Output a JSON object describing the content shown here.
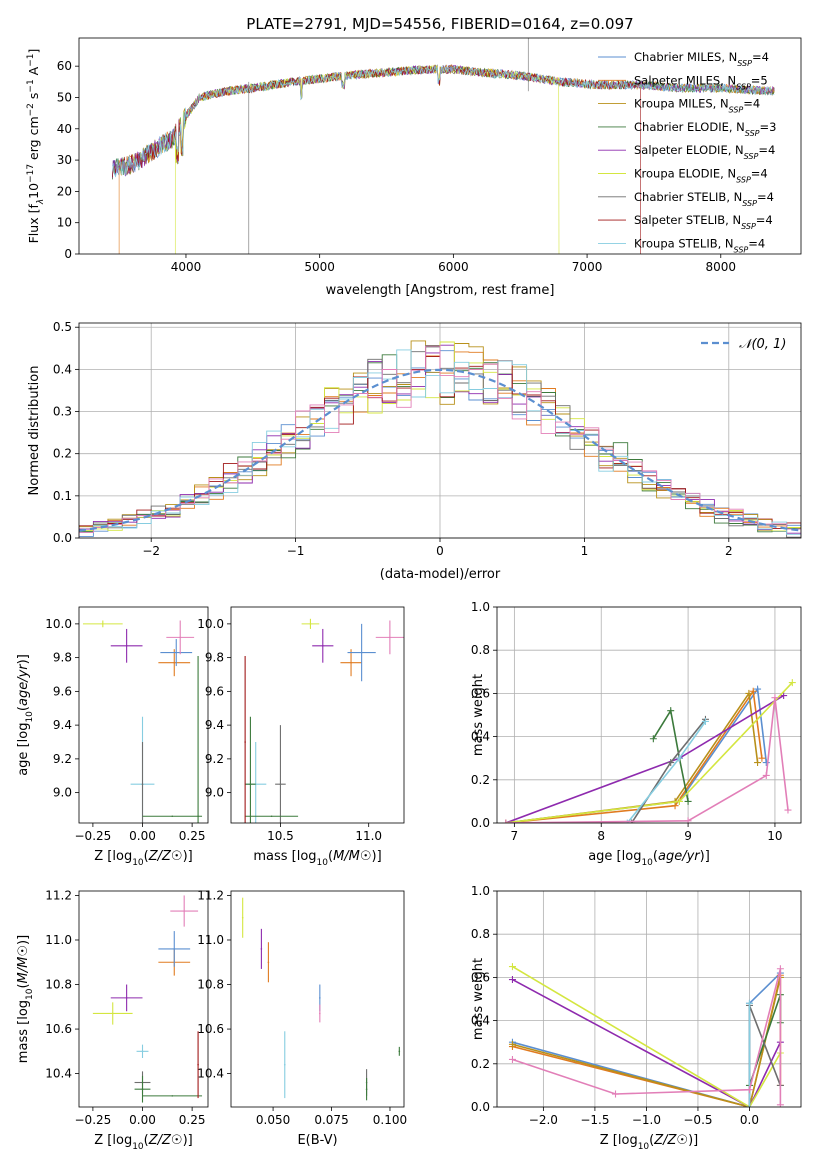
{
  "figure_title": "PLATE=2791, MJD=54556, FIBERID=0164, z=0.097",
  "colors": {
    "Chabrier MILES": "#5b8fd0",
    "Salpeter MILES": "#e07b20",
    "Kroupa MILES": "#b8901a",
    "Chabrier ELODIE": "#3c7a3c",
    "Salpeter ELODIE": "#8e2aae",
    "Kroupa ELODIE": "#d4e640",
    "Chabrier STELIB": "#6e6e6e",
    "Salpeter STELIB": "#a01818",
    "Kroupa STELIB": "#86cde0",
    "extra": "#e27fb8"
  },
  "chart_data": [
    {
      "type": "line",
      "title": "PLATE=2791, MJD=54556, FIBERID=0164, z=0.097",
      "xlabel": "wavelength [Angstrom, rest frame]",
      "ylabel_parts": [
        "Flux [f",
        "λ",
        "10",
        "−17",
        " erg cm",
        "−2",
        " s",
        "−1",
        " A",
        "−1",
        "]"
      ],
      "xlim": [
        3200,
        8600
      ],
      "ylim": [
        0,
        69
      ],
      "xticks": [
        4000,
        5000,
        6000,
        7000,
        8000
      ],
      "yticks": [
        0,
        10,
        20,
        30,
        40,
        50,
        60
      ],
      "grid": false,
      "legend_position": "upper-right",
      "legend": [
        {
          "label": "Chabrier MILES, N",
          "sub": "SSP",
          "suffix": "=4"
        },
        {
          "label": "Salpeter MILES, N",
          "sub": "SSP",
          "suffix": "=5"
        },
        {
          "label": "Kroupa MILES, N",
          "sub": "SSP",
          "suffix": "=4"
        },
        {
          "label": "Chabrier ELODIE, N",
          "sub": "SSP",
          "suffix": "=3"
        },
        {
          "label": "Salpeter ELODIE, N",
          "sub": "SSP",
          "suffix": "=4"
        },
        {
          "label": "Kroupa ELODIE, N",
          "sub": "SSP",
          "suffix": "=4"
        },
        {
          "label": "Chabrier STELIB, N",
          "sub": "SSP",
          "suffix": "=4"
        },
        {
          "label": "Salpeter STELIB, N",
          "sub": "SSP",
          "suffix": "=4"
        },
        {
          "label": "Kroupa STELIB, N",
          "sub": "SSP",
          "suffix": "=4"
        }
      ],
      "spectrum_anchors": [
        [
          3450,
          27
        ],
        [
          3550,
          28
        ],
        [
          3650,
          30
        ],
        [
          3750,
          33
        ],
        [
          3900,
          37
        ],
        [
          4000,
          44
        ],
        [
          4100,
          50
        ],
        [
          4300,
          52
        ],
        [
          4500,
          53
        ],
        [
          4800,
          55
        ],
        [
          5000,
          56
        ],
        [
          5200,
          57
        ],
        [
          5500,
          58
        ],
        [
          5800,
          59
        ],
        [
          6000,
          59
        ],
        [
          6200,
          58
        ],
        [
          6500,
          57
        ],
        [
          6800,
          55
        ],
        [
          7100,
          54
        ],
        [
          7400,
          54
        ],
        [
          7700,
          53
        ],
        [
          8000,
          53
        ],
        [
          8400,
          52
        ]
      ],
      "series_ranges": [
        [
          3450,
          8400
        ],
        [
          3500,
          8400
        ],
        [
          3480,
          8400
        ],
        [
          3450,
          8400
        ],
        [
          3450,
          8400
        ],
        [
          3920,
          6790
        ],
        [
          3450,
          8400
        ],
        [
          3450,
          7400
        ],
        [
          3450,
          8400
        ]
      ]
    },
    {
      "type": "line",
      "xlabel": "(data-model)/error",
      "ylabel": "Normed distribution",
      "xlim": [
        -2.5,
        2.5
      ],
      "ylim": [
        0,
        0.51
      ],
      "xticks": [
        -2,
        -1,
        0,
        1,
        2
      ],
      "xtick_labels": [
        "−2",
        "−1",
        "0",
        "1",
        "2"
      ],
      "yticks": [
        0.0,
        0.1,
        0.2,
        0.3,
        0.4,
        0.5
      ],
      "ytick_labels": [
        "0.0",
        "0.1",
        "0.2",
        "0.3",
        "0.4",
        "0.5"
      ],
      "grid": true,
      "legend_position": "upper-right",
      "legend_label": "𝒩(0, 1)",
      "curve": "normal(0,1)",
      "bin_width": 0.1,
      "bin_range": [
        -2.5,
        2.5
      ]
    },
    {
      "type": "scatter",
      "xlabel": "Z [log10(Z/Z☉)]",
      "ylabel": "age  [log10(age/yr)]",
      "xlim": [
        -0.32,
        0.33
      ],
      "ylim": [
        8.82,
        10.1
      ],
      "xticks": [
        -0.25,
        0.0,
        0.25
      ],
      "xtick_labels": [
        "−0.25",
        "0.00",
        "0.25"
      ],
      "yticks": [
        9.0,
        9.2,
        9.4,
        9.6,
        9.8,
        10.0
      ],
      "ytick_labels": [
        "9.0",
        "9.2",
        "9.4",
        "9.6",
        "9.8",
        "10.0"
      ],
      "points": [
        {
          "x": -0.2,
          "y": 10.0,
          "xerr": 0.1,
          "yerr": 0.02
        },
        {
          "x": -0.08,
          "y": 9.87,
          "xerr": 0.08,
          "yerr": 0.1
        },
        {
          "x": 0.16,
          "y": 9.77,
          "xerr": 0.08,
          "yerr": 0.08
        },
        {
          "x": 0.17,
          "y": 9.83,
          "xerr": 0.08,
          "yerr": 0.08
        },
        {
          "x": 0.19,
          "y": 9.92,
          "xerr": 0.07,
          "yerr": 0.1
        },
        {
          "x": 0.0,
          "y": 9.05,
          "xerr": 0.06,
          "yerr": 0.4
        },
        {
          "x": 0.0,
          "y": 9.05,
          "xerr": 0.0,
          "yerr": 0.25
        },
        {
          "x": 0.28,
          "y": 8.86,
          "xerr": 0.0,
          "yerr": 0.95
        },
        {
          "x": 0.15,
          "y": 8.86,
          "xerr": 0.15,
          "yerr": 0.0
        }
      ]
    },
    {
      "type": "scatter",
      "xlabel": "mass [log10(M/M☉)]",
      "xlim": [
        10.22,
        11.2
      ],
      "ylim": [
        8.82,
        10.1
      ],
      "xticks": [
        10.5,
        11.0
      ],
      "xtick_labels": [
        "10.5",
        "11.0"
      ],
      "yticks": [
        9.0,
        9.2,
        9.4,
        9.6,
        9.8,
        10.0
      ],
      "ytick_labels": [
        "9.0",
        "9.2",
        "9.4",
        "9.6",
        "9.8",
        "10.0"
      ],
      "points": [
        {
          "x": 10.67,
          "y": 10.0,
          "xerr": 0.05,
          "yerr": 0.03
        },
        {
          "x": 10.74,
          "y": 9.87,
          "xerr": 0.06,
          "yerr": 0.1
        },
        {
          "x": 10.9,
          "y": 9.77,
          "xerr": 0.06,
          "yerr": 0.08
        },
        {
          "x": 10.96,
          "y": 9.83,
          "xerr": 0.08,
          "yerr": 0.17
        },
        {
          "x": 11.12,
          "y": 9.92,
          "xerr": 0.08,
          "yerr": 0.1
        },
        {
          "x": 10.36,
          "y": 9.05,
          "xerr": 0.06,
          "yerr": 0.25
        },
        {
          "x": 10.5,
          "y": 9.05,
          "xerr": 0.03,
          "yerr": 0.35
        },
        {
          "x": 10.33,
          "y": 9.05,
          "xerr": 0.03,
          "yerr": 0.4
        },
        {
          "x": 10.45,
          "y": 8.86,
          "xerr": 0.15,
          "yerr": 0.0
        },
        {
          "x": 10.3,
          "y": 9.3,
          "xerr": 0.0,
          "yerr": 0.51
        }
      ]
    },
    {
      "type": "line",
      "xlabel": "age  [log10(age/yr)]",
      "ylabel": "mass weight",
      "xlim": [
        6.8,
        10.3
      ],
      "ylim": [
        0,
        1.0
      ],
      "xticks": [
        7,
        8,
        9,
        10
      ],
      "xtick_labels": [
        "7",
        "8",
        "9",
        "10"
      ],
      "yticks": [
        0.0,
        0.2,
        0.4,
        0.6,
        0.8,
        1.0
      ],
      "ytick_labels": [
        "0.0",
        "0.2",
        "0.4",
        "0.6",
        "0.8",
        "1.0"
      ],
      "grid": true,
      "series": [
        {
          "x": [
            6.9,
            8.9,
            9.8,
            9.9
          ],
          "y": [
            0.0,
            0.1,
            0.62,
            0.28
          ]
        },
        {
          "x": [
            6.9,
            8.85,
            9.75,
            9.85
          ],
          "y": [
            0.0,
            0.08,
            0.61,
            0.3
          ]
        },
        {
          "x": [
            6.9,
            8.85,
            9.7,
            9.8
          ],
          "y": [
            0.0,
            0.1,
            0.6,
            0.28
          ]
        },
        {
          "x": [
            8.6,
            8.8,
            8.9,
            9.0
          ],
          "y": [
            0.39,
            0.52,
            0.3,
            0.1
          ]
        },
        {
          "x": [
            6.9,
            8.9,
            10.1
          ],
          "y": [
            0.0,
            0.3,
            0.59
          ]
        },
        {
          "x": [
            6.9,
            8.9,
            10.2
          ],
          "y": [
            0.0,
            0.1,
            0.65
          ]
        },
        {
          "x": [
            8.35,
            8.8,
            9.2
          ],
          "y": [
            0.0,
            0.28,
            0.48
          ]
        },
        {
          "x": [
            8.3,
            8.9,
            9.2
          ],
          "y": [
            0.0,
            0.3,
            0.47
          ]
        },
        {
          "x": [
            6.9,
            9.0,
            9.9,
            10.0,
            10.15
          ],
          "y": [
            0.0,
            0.01,
            0.22,
            0.58,
            0.06
          ]
        }
      ]
    },
    {
      "type": "scatter",
      "xlabel": "Z [log10(Z/Z☉)]",
      "ylabel": "mass [log10(M/M☉)]",
      "xlim": [
        -0.32,
        0.33
      ],
      "ylim": [
        10.25,
        11.22
      ],
      "xticks": [
        -0.25,
        0.0,
        0.25
      ],
      "xtick_labels": [
        "−0.25",
        "0.00",
        "0.25"
      ],
      "yticks": [
        10.4,
        10.6,
        10.8,
        11.0,
        11.2
      ],
      "ytick_labels": [
        "10.4",
        "10.6",
        "10.8",
        "11.0",
        "11.2"
      ],
      "points": [
        {
          "x": -0.15,
          "y": 10.67,
          "xerr": 0.1,
          "yerr": 0.05
        },
        {
          "x": -0.08,
          "y": 10.74,
          "xerr": 0.08,
          "yerr": 0.06
        },
        {
          "x": 0.16,
          "y": 10.9,
          "xerr": 0.08,
          "yerr": 0.06
        },
        {
          "x": 0.16,
          "y": 10.96,
          "xerr": 0.08,
          "yerr": 0.08
        },
        {
          "x": 0.21,
          "y": 11.13,
          "xerr": 0.07,
          "yerr": 0.07
        },
        {
          "x": 0.0,
          "y": 10.5,
          "xerr": 0.03,
          "yerr": 0.03
        },
        {
          "x": 0.0,
          "y": 10.36,
          "xerr": 0.04,
          "yerr": 0.05
        },
        {
          "x": 0.0,
          "y": 10.33,
          "xerr": 0.04,
          "yerr": 0.06
        },
        {
          "x": 0.15,
          "y": 10.3,
          "xerr": 0.15,
          "yerr": 0.0
        },
        {
          "x": 0.28,
          "y": 10.44,
          "xerr": 0.0,
          "yerr": 0.15
        }
      ]
    },
    {
      "type": "scatter",
      "xlabel": "E(B-V)",
      "xlim": [
        0.032,
        0.106
      ],
      "ylim": [
        10.25,
        11.22
      ],
      "xticks": [
        0.05,
        0.075,
        0.1
      ],
      "xtick_labels": [
        "0.050",
        "0.075",
        "0.100"
      ],
      "yticks": [
        10.4,
        10.6,
        10.8,
        11.0,
        11.2
      ],
      "ytick_labels": [
        "10.4",
        "10.6",
        "10.8",
        "11.0",
        "11.2"
      ],
      "points": [
        {
          "x": 0.037,
          "y": 11.1,
          "xerr": 0.0,
          "yerr": 0.09
        },
        {
          "x": 0.045,
          "y": 10.96,
          "xerr": 0.0,
          "yerr": 0.09
        },
        {
          "x": 0.048,
          "y": 10.9,
          "xerr": 0.0,
          "yerr": 0.09
        },
        {
          "x": 0.07,
          "y": 10.74,
          "xerr": 0.0,
          "yerr": 0.06
        },
        {
          "x": 0.07,
          "y": 10.67,
          "xerr": 0.0,
          "yerr": 0.04
        },
        {
          "x": 0.055,
          "y": 10.44,
          "xerr": 0.0,
          "yerr": 0.15
        },
        {
          "x": 0.09,
          "y": 10.36,
          "xerr": 0.0,
          "yerr": 0.06
        },
        {
          "x": 0.09,
          "y": 10.33,
          "xerr": 0.0,
          "yerr": 0.05
        },
        {
          "x": 0.104,
          "y": 10.5,
          "xerr": 0.0,
          "yerr": 0.02
        }
      ]
    },
    {
      "type": "line",
      "xlabel": "Z [log10(Z/Z☉)]",
      "ylabel": "mass weight",
      "xlim": [
        -2.45,
        0.5
      ],
      "ylim": [
        0,
        1.0
      ],
      "xticks": [
        -2.0,
        -1.5,
        -1.0,
        -0.5,
        0.0
      ],
      "xtick_labels": [
        "−2.0",
        "−1.5",
        "−1.0",
        "−0.5",
        "0.0"
      ],
      "yticks": [
        0.0,
        0.2,
        0.4,
        0.6,
        0.8,
        1.0
      ],
      "ytick_labels": [
        "0.0",
        "0.2",
        "0.4",
        "0.6",
        "0.8",
        "1.0"
      ],
      "grid": true,
      "series": [
        {
          "x": [
            -2.3,
            0.0,
            0.0,
            0.3
          ],
          "y": [
            0.3,
            0.0,
            0.48,
            0.62
          ]
        },
        {
          "x": [
            -2.3,
            0.0,
            0.3,
            0.3
          ],
          "y": [
            0.28,
            0.0,
            0.61,
            0.1
          ]
        },
        {
          "x": [
            -2.3,
            0.0,
            0.3
          ],
          "y": [
            0.29,
            0.0,
            0.6
          ]
        },
        {
          "x": [
            0.0,
            0.3,
            0.3
          ],
          "y": [
            0.1,
            0.52,
            0.39
          ]
        },
        {
          "x": [
            -2.3,
            0.0,
            0.3
          ],
          "y": [
            0.59,
            0.0,
            0.3
          ]
        },
        {
          "x": [
            -2.3,
            0.0,
            0.3
          ],
          "y": [
            0.65,
            0.0,
            0.25
          ]
        },
        {
          "x": [
            0.0,
            0.0,
            0.3
          ],
          "y": [
            0.0,
            0.47,
            0.1
          ]
        },
        {
          "x": [
            0.0,
            0.0
          ],
          "y": [
            0.0,
            0.48
          ]
        },
        {
          "x": [
            -2.3,
            -1.3,
            0.0,
            0.3,
            0.3
          ],
          "y": [
            0.22,
            0.06,
            0.08,
            0.64,
            0.01
          ]
        }
      ]
    }
  ]
}
